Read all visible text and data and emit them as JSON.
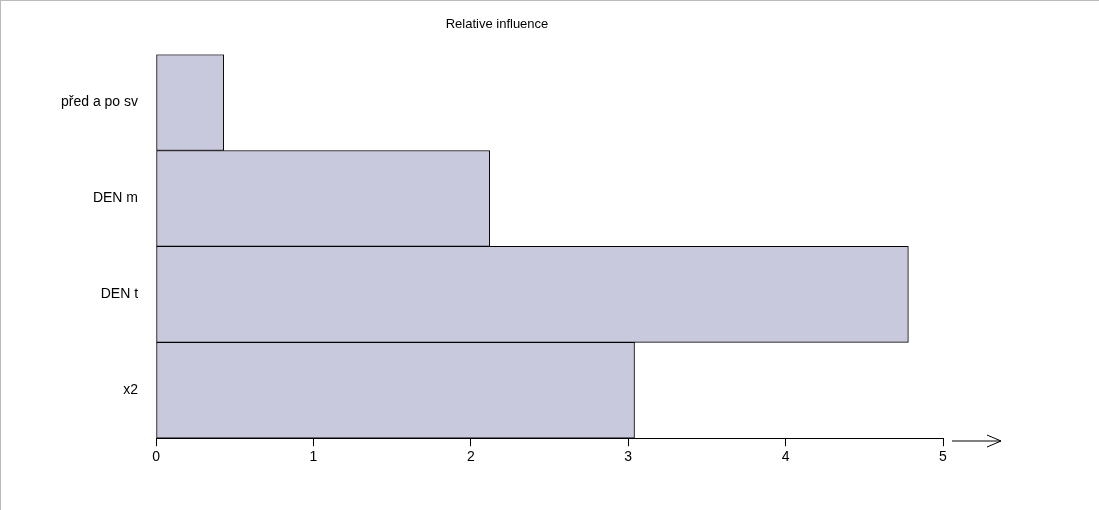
{
  "chart_data": {
    "type": "bar",
    "orientation": "horizontal",
    "title": "Relative influence",
    "categories": [
      "před a po sv",
      "DEN m",
      "DEN t",
      "x2"
    ],
    "values": [
      0.43,
      2.12,
      4.78,
      3.04
    ],
    "color": "#c9c9dd",
    "xlim": [
      0,
      5
    ],
    "xticks": [
      0,
      1,
      2,
      3,
      4,
      5
    ],
    "grid": false,
    "legend": false
  }
}
